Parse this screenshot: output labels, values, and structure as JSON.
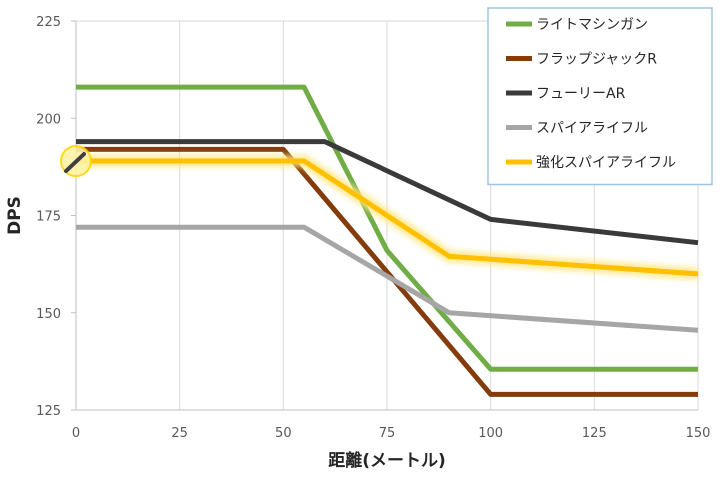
{
  "chart_data": {
    "type": "line",
    "xlabel": "距離(メートル)",
    "ylabel": "DPS",
    "xlim": [
      0,
      150
    ],
    "ylim": [
      125,
      225
    ],
    "x_ticks": [
      "0",
      "25",
      "50",
      "75",
      "100",
      "125",
      "150"
    ],
    "y_ticks": [
      "125",
      "150",
      "175",
      "200",
      "225"
    ],
    "grid": "vertical",
    "legend_position": "top-right",
    "series": [
      {
        "name": "ライトマシンガン",
        "color": "#70ad47",
        "points": [
          [
            0,
            208
          ],
          [
            55,
            208
          ],
          [
            75,
            166
          ],
          [
            100,
            135.5
          ],
          [
            150,
            135.5
          ]
        ]
      },
      {
        "name": "フラップジャックR",
        "color": "#843c0c",
        "points": [
          [
            0,
            192
          ],
          [
            50,
            192
          ],
          [
            100,
            129
          ],
          [
            150,
            129
          ]
        ]
      },
      {
        "name": "フューリーAR",
        "color": "#3a3a3a",
        "points": [
          [
            0,
            194
          ],
          [
            60,
            194
          ],
          [
            100,
            174
          ],
          [
            150,
            168
          ]
        ]
      },
      {
        "name": "スパイアライフル",
        "color": "#a6a6a6",
        "points": [
          [
            0,
            172
          ],
          [
            55,
            172
          ],
          [
            90,
            150
          ],
          [
            150,
            145.5
          ]
        ]
      },
      {
        "name": "強化スパイアライフル",
        "color": "#ffc000",
        "points": [
          [
            0,
            189
          ],
          [
            55,
            189
          ],
          [
            90,
            164.5
          ],
          [
            150,
            160
          ]
        ]
      }
    ]
  }
}
